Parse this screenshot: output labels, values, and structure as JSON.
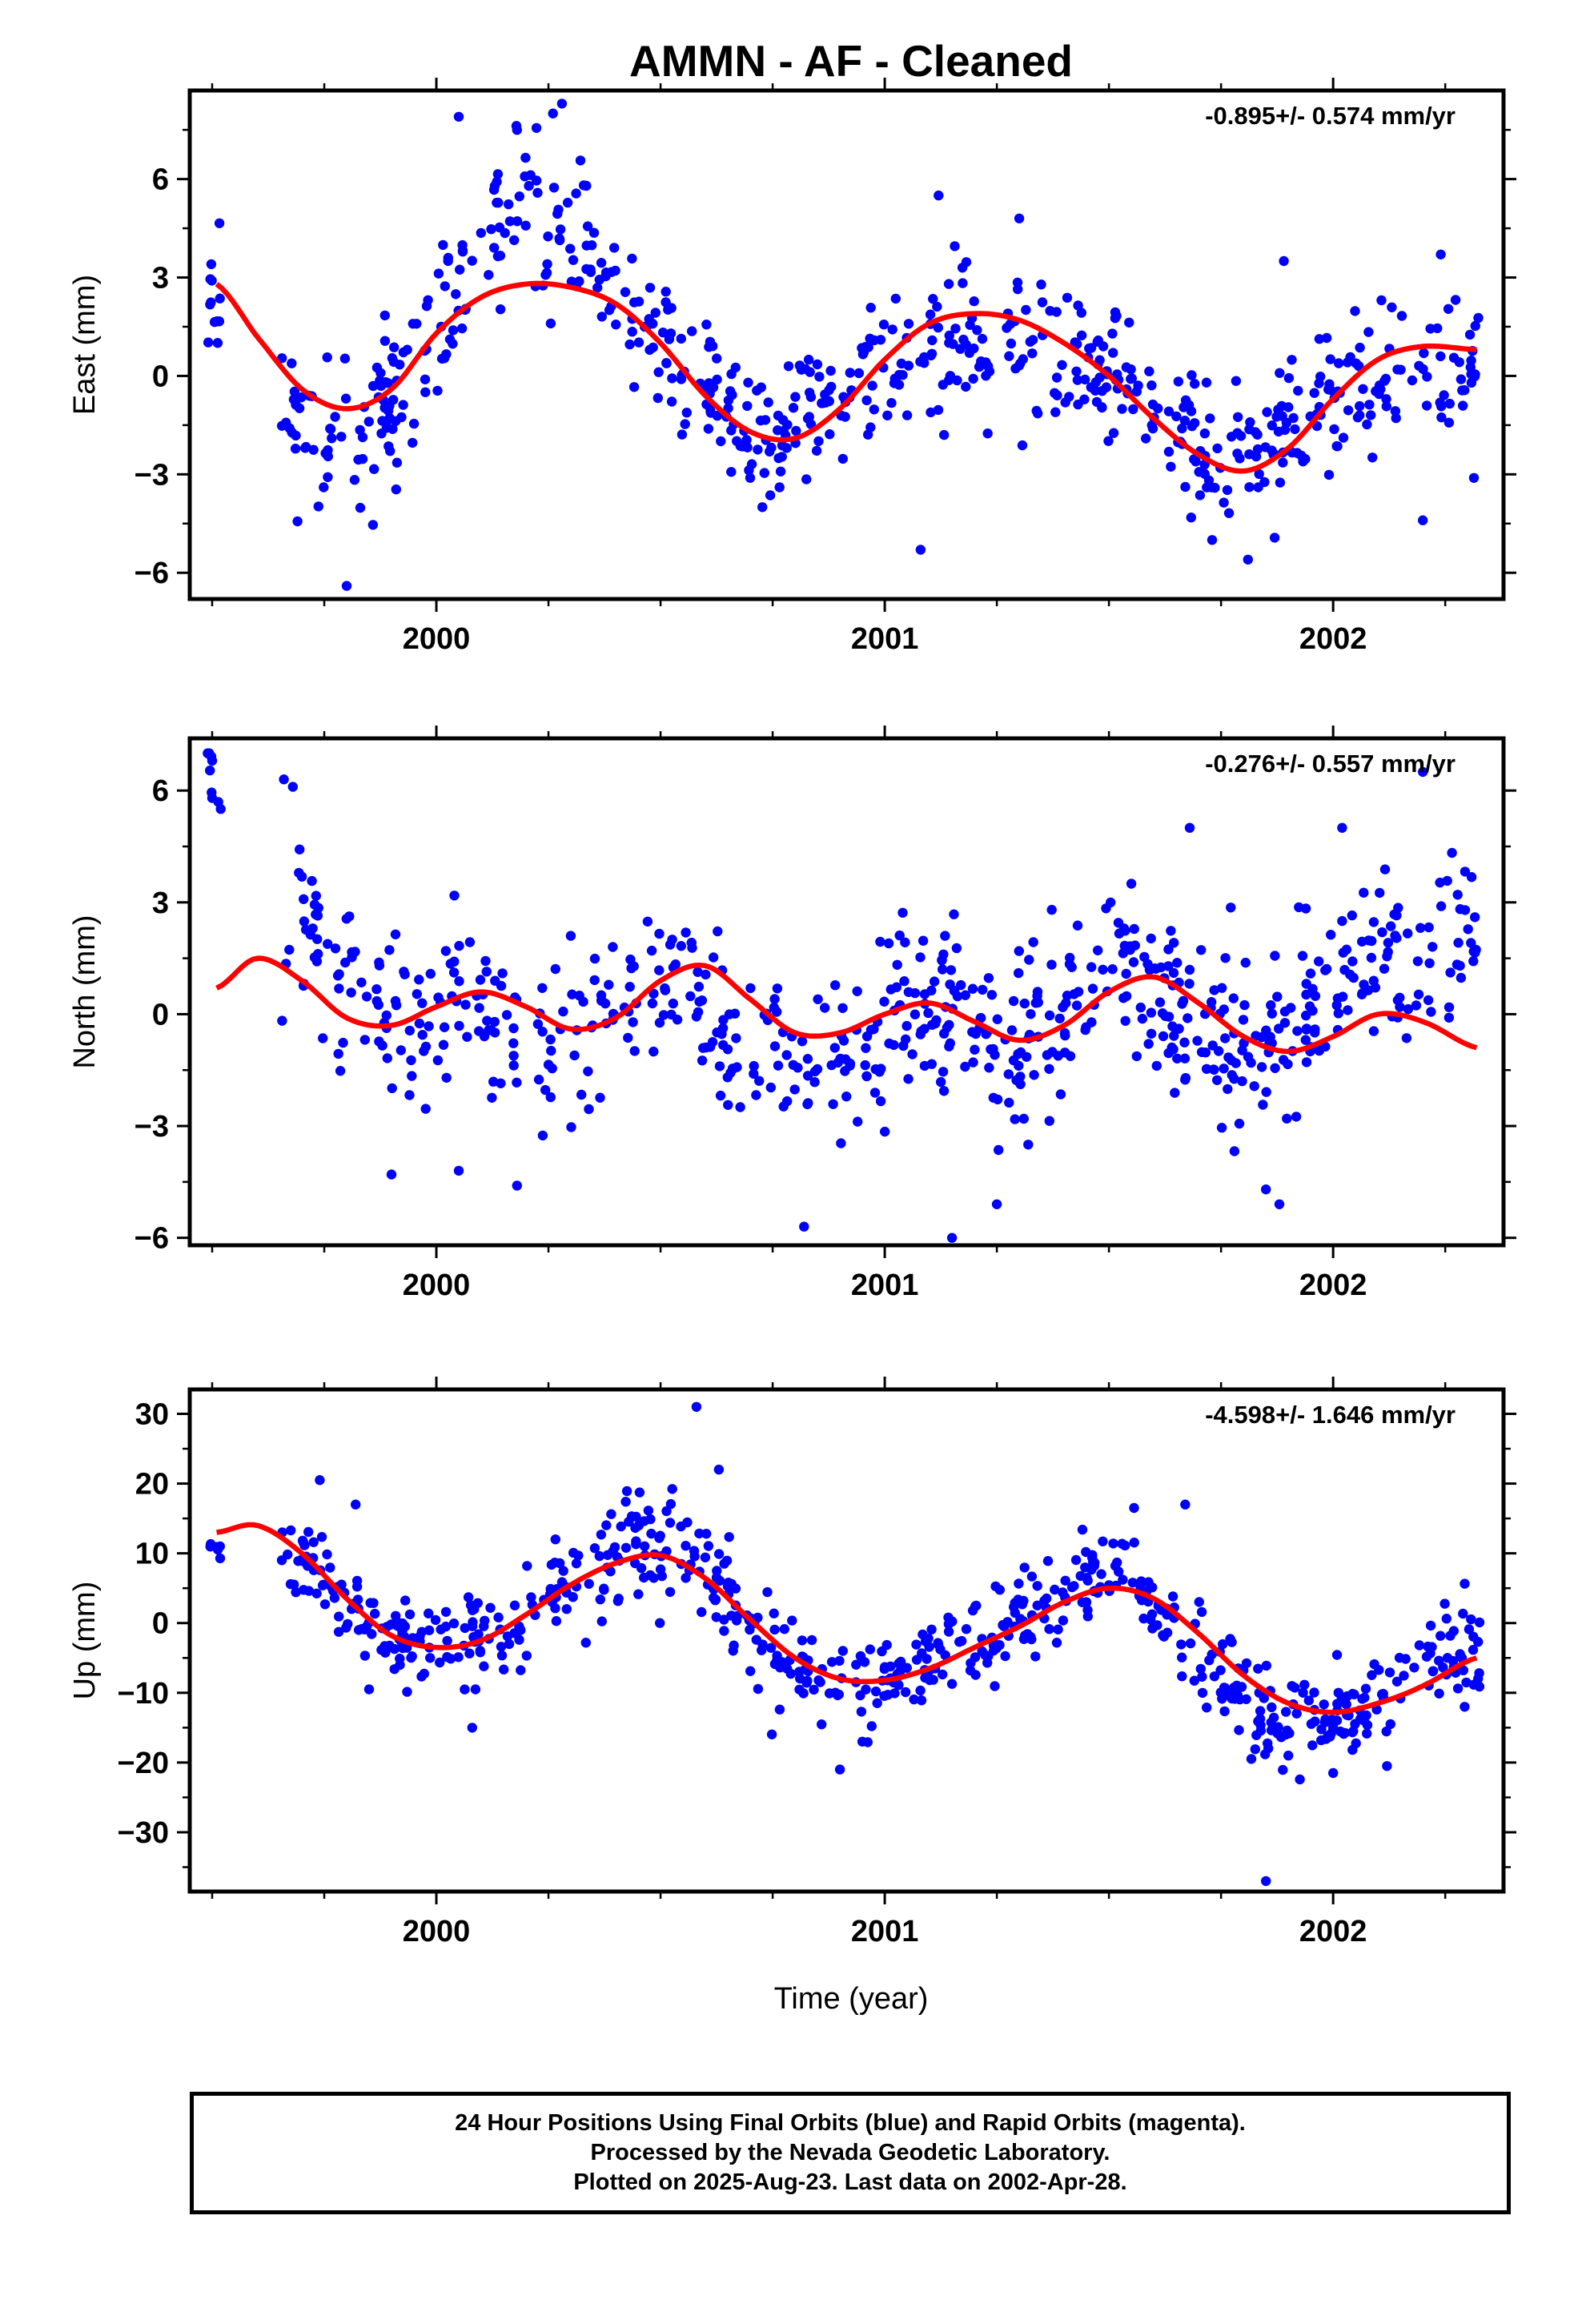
{
  "title": "AMMN  - AF - Cleaned",
  "x_label": "Time (year)",
  "colors": {
    "points": "#0000ff",
    "fit": "#ff0000",
    "frame": "#000000"
  },
  "footer": {
    "line1": "24 Hour Positions Using Final Orbits (blue) and Rapid Orbits (magenta).",
    "line2": "Processed by the Nevada Geodetic Laboratory.",
    "line3": "Plotted on 2025-Aug-23. Last data on 2002-Apr-28."
  },
  "chart_data": [
    {
      "type": "scatter",
      "component": "east",
      "ylabel": "East (mm)",
      "rate_label": "-0.895+/- 0.574 mm/yr",
      "xlim": [
        1999.45,
        2002.38
      ],
      "ylim": [
        -6.8,
        8.7
      ],
      "xticks": [
        2000,
        2001,
        2002
      ],
      "xtick_labels": [
        "2000",
        "2001",
        "2002"
      ],
      "yticks": [
        -6,
        -3,
        0,
        3,
        6
      ],
      "ytick_labels": [
        "−6",
        "−3",
        "0",
        "3",
        "6"
      ],
      "fit_curve": {
        "x": [
          1999.51,
          1999.6,
          1999.7,
          1999.8,
          1999.9,
          2000.0,
          2000.1,
          2000.2,
          2000.3,
          2000.4,
          2000.5,
          2000.6,
          2000.7,
          2000.8,
          2000.9,
          2001.0,
          2001.1,
          2001.2,
          2001.3,
          2001.4,
          2001.5,
          2001.6,
          2001.7,
          2001.8,
          2001.9,
          2002.0,
          2002.1,
          2002.2,
          2002.32
        ],
        "y": [
          2.8,
          1.2,
          -0.4,
          -1.0,
          -0.4,
          1.3,
          2.4,
          2.8,
          2.7,
          2.2,
          1.0,
          -0.6,
          -1.7,
          -1.9,
          -1.0,
          0.5,
          1.6,
          1.9,
          1.7,
          1.0,
          0.0,
          -1.3,
          -2.4,
          -2.9,
          -2.2,
          -0.7,
          0.5,
          0.9,
          0.8
        ]
      },
      "points": {
        "anchors_x": [
          1999.49,
          1999.57,
          1999.66,
          1999.75,
          1999.85,
          1999.95,
          2000.05,
          2000.15,
          2000.25,
          2000.35,
          2000.45,
          2000.55,
          2000.65,
          2000.75,
          2000.85,
          2000.95,
          2001.05,
          2001.15,
          2001.25,
          2001.35,
          2001.45,
          2001.55,
          2001.65,
          2001.75,
          2001.85,
          2001.95,
          2002.05,
          2002.15,
          2002.25,
          2002.33
        ],
        "anchors_y": [
          2.2,
          1.6,
          -1.0,
          -2.2,
          -2.2,
          0.3,
          2.6,
          4.2,
          5.0,
          3.0,
          1.5,
          0.2,
          -1.2,
          -2.3,
          -0.8,
          0.0,
          1.0,
          1.2,
          1.4,
          0.6,
          0.3,
          -0.4,
          -1.3,
          -2.6,
          -2.2,
          -0.8,
          0.1,
          -0.3,
          0.3,
          0.2
        ],
        "anchors_spread": [
          1.0,
          1.6,
          1.6,
          1.6,
          1.5,
          1.4,
          1.5,
          1.8,
          2.0,
          1.4,
          1.2,
          1.2,
          1.2,
          1.2,
          1.2,
          1.2,
          1.4,
          1.6,
          1.6,
          1.3,
          1.2,
          1.2,
          1.2,
          1.2,
          1.2,
          1.2,
          1.2,
          1.2,
          1.2,
          1.2
        ],
        "count": 680,
        "gaps": [
          [
            1999.52,
            1999.65
          ]
        ],
        "outliers": [
          [
            2000.05,
            7.9
          ],
          [
            2000.28,
            8.3
          ],
          [
            2000.26,
            8.0
          ],
          [
            2000.18,
            7.5
          ],
          [
            2001.12,
            5.5
          ],
          [
            2001.3,
            4.8
          ],
          [
            2001.08,
            -5.3
          ],
          [
            2001.89,
            3.5
          ],
          [
            1999.8,
            -6.4
          ],
          [
            2002.24,
            3.7
          ],
          [
            2002.2,
            -4.4
          ],
          [
            2001.81,
            -5.6
          ],
          [
            2001.73,
            -5.0
          ]
        ]
      }
    },
    {
      "type": "scatter",
      "component": "north",
      "ylabel": "North (mm)",
      "rate_label": "-0.276+/- 0.557 mm/yr",
      "xlim": [
        1999.45,
        2002.38
      ],
      "ylim": [
        -6.2,
        7.4
      ],
      "xticks": [
        2000,
        2001,
        2002
      ],
      "xtick_labels": [
        "2000",
        "2001",
        "2002"
      ],
      "yticks": [
        -6,
        -3,
        0,
        3,
        6
      ],
      "ytick_labels": [
        "−6",
        "−3",
        "0",
        "3",
        "6"
      ],
      "fit_curve": {
        "x": [
          1999.51,
          1999.6,
          1999.7,
          1999.8,
          1999.9,
          2000.0,
          2000.1,
          2000.2,
          2000.3,
          2000.4,
          2000.5,
          2000.6,
          2000.7,
          2000.8,
          2000.9,
          2001.0,
          2001.1,
          2001.2,
          2001.3,
          2001.4,
          2001.5,
          2001.6,
          2001.7,
          2001.8,
          2001.9,
          2002.0,
          2002.1,
          2002.2,
          2002.32
        ],
        "y": [
          0.7,
          1.5,
          0.9,
          -0.1,
          -0.3,
          0.2,
          0.6,
          0.2,
          -0.4,
          -0.1,
          0.9,
          1.3,
          0.4,
          -0.5,
          -0.5,
          0.0,
          0.3,
          -0.2,
          -0.7,
          -0.3,
          0.6,
          1.0,
          0.3,
          -0.6,
          -1.0,
          -0.6,
          0.0,
          -0.2,
          -0.9
        ]
      },
      "points": {
        "anchors_x": [
          1999.49,
          1999.57,
          1999.66,
          1999.75,
          1999.85,
          1999.95,
          2000.05,
          2000.15,
          2000.25,
          2000.35,
          2000.45,
          2000.55,
          2000.65,
          2000.75,
          2000.85,
          2000.95,
          2001.05,
          2001.15,
          2001.25,
          2001.35,
          2001.45,
          2001.55,
          2001.65,
          2001.75,
          2001.85,
          2001.95,
          2002.05,
          2002.15,
          2002.25,
          2002.33
        ],
        "anchors_y": [
          6.5,
          4.0,
          2.6,
          1.6,
          0.6,
          -0.3,
          0.4,
          0.0,
          -0.6,
          -0.3,
          0.6,
          0.8,
          -0.6,
          -1.2,
          -1.4,
          -0.6,
          0.4,
          0.2,
          -0.8,
          -0.6,
          0.4,
          1.6,
          0.0,
          -0.9,
          -1.0,
          0.0,
          1.2,
          1.6,
          2.0,
          2.4
        ],
        "anchors_spread": [
          0.6,
          1.6,
          1.6,
          1.4,
          1.4,
          1.4,
          1.5,
          1.5,
          1.4,
          1.4,
          1.3,
          1.3,
          1.3,
          1.4,
          1.4,
          1.4,
          1.4,
          1.4,
          1.4,
          1.3,
          1.3,
          1.4,
          1.4,
          1.4,
          1.4,
          1.3,
          1.3,
          1.3,
          1.3,
          1.3
        ],
        "count": 680,
        "gaps": [
          [
            1999.52,
            1999.65
          ]
        ],
        "outliers": [
          [
            1999.49,
            7.0
          ],
          [
            1999.5,
            6.8
          ],
          [
            1999.5,
            5.8
          ],
          [
            1999.66,
            6.3
          ],
          [
            1999.68,
            6.1
          ],
          [
            1999.9,
            -4.3
          ],
          [
            2000.05,
            -4.2
          ],
          [
            2000.18,
            -4.6
          ],
          [
            2000.82,
            -5.7
          ],
          [
            2001.15,
            -6.0
          ],
          [
            2001.25,
            -5.1
          ],
          [
            2001.85,
            -4.7
          ],
          [
            2001.88,
            -5.1
          ],
          [
            2001.68,
            5.0
          ],
          [
            2002.02,
            5.0
          ],
          [
            2002.2,
            6.5
          ],
          [
            2001.55,
            3.5
          ],
          [
            2001.32,
            -3.5
          ]
        ]
      }
    },
    {
      "type": "scatter",
      "component": "up",
      "ylabel": "Up (mm)",
      "rate_label": "-4.598+/- 1.646 mm/yr",
      "xlim": [
        1999.45,
        2002.38
      ],
      "ylim": [
        -38.5,
        33.5
      ],
      "xticks": [
        2000,
        2001,
        2002
      ],
      "xtick_labels": [
        "2000",
        "2001",
        "2002"
      ],
      "yticks": [
        -30,
        -20,
        -10,
        0,
        10,
        20,
        30
      ],
      "ytick_labels": [
        "−30",
        "−20",
        "−10",
        "0",
        "10",
        "20",
        "30"
      ],
      "fit_curve": {
        "x": [
          1999.51,
          1999.6,
          1999.7,
          1999.8,
          1999.9,
          2000.0,
          2000.1,
          2000.2,
          2000.3,
          2000.4,
          2000.5,
          2000.6,
          2000.7,
          2000.8,
          2000.9,
          2001.0,
          2001.1,
          2001.2,
          2001.3,
          2001.4,
          2001.5,
          2001.6,
          2001.7,
          2001.8,
          2001.9,
          2002.0,
          2002.1,
          2002.2,
          2002.32
        ],
        "y": [
          13.0,
          14.0,
          10.0,
          3.5,
          -1.8,
          -3.5,
          -2.5,
          1.2,
          5.5,
          8.6,
          9.7,
          6.4,
          0.5,
          -5.0,
          -8.0,
          -8.2,
          -6.5,
          -3.5,
          -0.5,
          3.0,
          5.0,
          3.5,
          -1.5,
          -7.5,
          -11.5,
          -12.8,
          -11.5,
          -9.0,
          -5.0
        ]
      },
      "points": {
        "anchors_x": [
          1999.49,
          1999.57,
          1999.66,
          1999.75,
          1999.85,
          1999.95,
          2000.05,
          2000.15,
          2000.25,
          2000.35,
          2000.45,
          2000.55,
          2000.65,
          2000.75,
          2000.85,
          2000.95,
          2001.05,
          2001.15,
          2001.25,
          2001.35,
          2001.45,
          2001.55,
          2001.65,
          2001.75,
          2001.85,
          2001.95,
          2002.05,
          2002.15,
          2002.25,
          2002.33
        ],
        "anchors_y": [
          11.0,
          12.0,
          11.0,
          6.0,
          0.0,
          -3.0,
          -3.5,
          0.0,
          4.5,
          8.5,
          11.0,
          11.0,
          3.0,
          -4.5,
          -9.0,
          -9.5,
          -6.5,
          -4.0,
          -1.0,
          2.5,
          6.0,
          6.0,
          0.0,
          -7.5,
          -14.0,
          -12.5,
          -13.0,
          -8.0,
          -4.0,
          -4.5
        ],
        "anchors_spread": [
          2.0,
          4.0,
          4.0,
          4.0,
          4.0,
          4.0,
          4.0,
          4.0,
          4.0,
          4.0,
          4.0,
          4.0,
          4.0,
          4.0,
          4.0,
          4.0,
          4.0,
          4.0,
          4.0,
          4.0,
          4.0,
          4.0,
          4.0,
          4.0,
          4.0,
          4.0,
          4.0,
          4.0,
          4.0,
          4.0
        ],
        "count": 700,
        "gaps": [
          [
            1999.52,
            1999.65
          ]
        ],
        "outliers": [
          [
            2000.58,
            31.0
          ],
          [
            2000.63,
            22.0
          ],
          [
            1999.74,
            20.5
          ],
          [
            1999.82,
            17.0
          ],
          [
            2001.85,
            -37.0
          ],
          [
            1999.85,
            -9.5
          ],
          [
            2000.08,
            -15.0
          ],
          [
            2000.9,
            -21.0
          ],
          [
            2001.67,
            17.0
          ],
          [
            2002.0,
            -21.5
          ],
          [
            2002.12,
            -20.5
          ],
          [
            2001.9,
            -19.0
          ],
          [
            2000.95,
            -17.0
          ]
        ]
      }
    }
  ]
}
